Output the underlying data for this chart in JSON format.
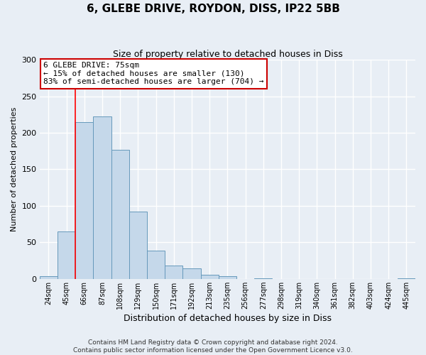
{
  "title": "6, GLEBE DRIVE, ROYDON, DISS, IP22 5BB",
  "subtitle": "Size of property relative to detached houses in Diss",
  "xlabel": "Distribution of detached houses by size in Diss",
  "ylabel": "Number of detached properties",
  "footer_line1": "Contains HM Land Registry data © Crown copyright and database right 2024.",
  "footer_line2": "Contains public sector information licensed under the Open Government Licence v3.0.",
  "bin_labels": [
    "24sqm",
    "45sqm",
    "66sqm",
    "87sqm",
    "108sqm",
    "129sqm",
    "150sqm",
    "171sqm",
    "192sqm",
    "213sqm",
    "235sqm",
    "256sqm",
    "277sqm",
    "298sqm",
    "319sqm",
    "340sqm",
    "361sqm",
    "382sqm",
    "403sqm",
    "424sqm",
    "445sqm"
  ],
  "bar_values": [
    4,
    65,
    215,
    222,
    177,
    92,
    39,
    18,
    14,
    6,
    4,
    0,
    1,
    0,
    0,
    0,
    0,
    0,
    0,
    0,
    1
  ],
  "bar_color": "#c5d8ea",
  "bar_edge_color": "#6699bb",
  "ylim_max": 300,
  "yticks": [
    0,
    50,
    100,
    150,
    200,
    250,
    300
  ],
  "red_line_x": 2.0,
  "annotation_title": "6 GLEBE DRIVE: 75sqm",
  "annotation_line1": "← 15% of detached houses are smaller (130)",
  "annotation_line2": "83% of semi-detached houses are larger (704) →",
  "annotation_box_facecolor": "#ffffff",
  "annotation_box_edgecolor": "#cc0000",
  "background_color": "#e8eef5",
  "grid_color": "#ffffff",
  "title_fontsize": 11,
  "subtitle_fontsize": 9,
  "annotation_title_fontsize": 9,
  "annotation_text_fontsize": 8,
  "ylabel_fontsize": 8,
  "xlabel_fontsize": 9,
  "ytick_fontsize": 8,
  "xtick_fontsize": 7,
  "footer_fontsize": 6.5
}
